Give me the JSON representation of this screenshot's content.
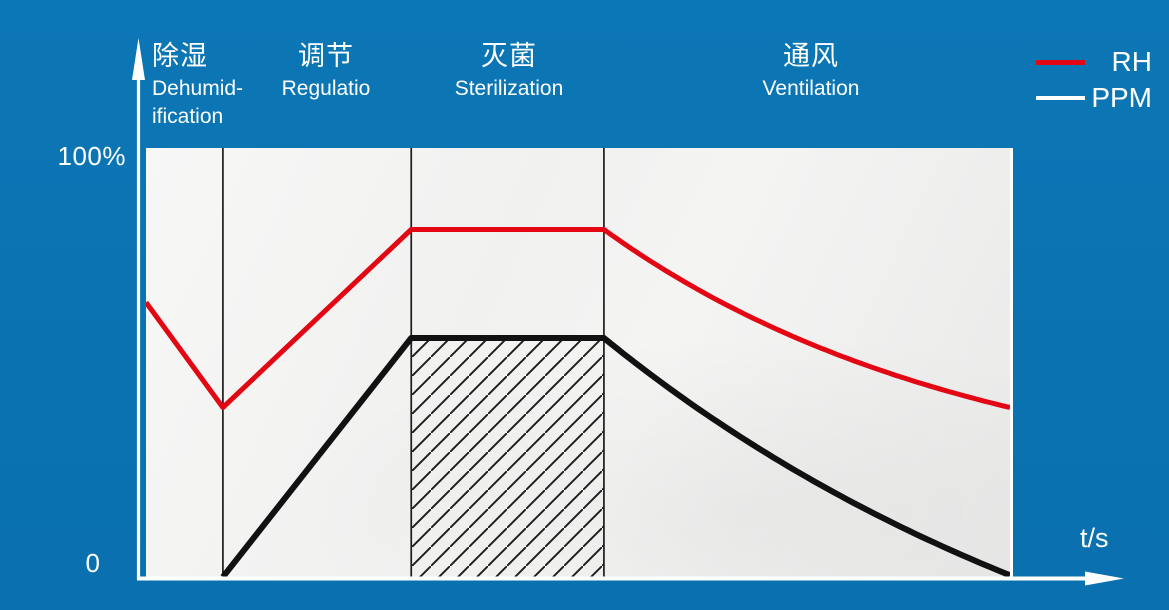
{
  "colors": {
    "background": "#0b73b2",
    "plot_background": "#f2f2f1",
    "rh_line": "#e30613",
    "ppm_line": "#111111",
    "axis": "#ffffff",
    "phase_divider": "#1c1c1c"
  },
  "axes": {
    "y_top_label": "100%",
    "y_bottom_label": "0",
    "x_label": "t/s"
  },
  "phases": [
    {
      "zh": "除湿",
      "en": "Dehumid-\nification"
    },
    {
      "zh": "调节",
      "en": "Regulatio"
    },
    {
      "zh": "灭菌",
      "en": "Sterilization"
    },
    {
      "zh": "通风",
      "en": "Ventilation"
    }
  ],
  "legend": {
    "items": [
      {
        "label": "RH",
        "color": "#e30613"
      },
      {
        "label": "PPM",
        "color": "#ffffff"
      }
    ]
  },
  "chart_data": {
    "type": "line",
    "title": "",
    "xlabel": "t/s",
    "ylabel": "%",
    "xlim": [
      0,
      100
    ],
    "ylim": [
      0,
      100
    ],
    "grid": false,
    "legend_position": "top-right",
    "phase_boundaries_t": [
      8.9,
      30.7,
      53.0
    ],
    "phase_ranges": [
      {
        "label_zh": "除湿",
        "label_en": "Dehumid-ification",
        "t_start": 0,
        "t_end": 8.9
      },
      {
        "label_zh": "调节",
        "label_en": "Regulatio",
        "t_start": 8.9,
        "t_end": 30.7
      },
      {
        "label_zh": "灭菌",
        "label_en": "Sterilization",
        "t_start": 30.7,
        "t_end": 53.0
      },
      {
        "label_zh": "通风",
        "label_en": "Ventilation",
        "t_start": 53.0,
        "t_end": 100
      }
    ],
    "series": [
      {
        "name": "RH",
        "color": "#e30613",
        "stroke_width": 5,
        "points": [
          {
            "t": 0,
            "v": 64
          },
          {
            "t": 8.9,
            "v": 39.5
          },
          {
            "t": 30.7,
            "v": 81
          },
          {
            "t": 53.0,
            "v": 81
          },
          {
            "t": 100,
            "v": 39.5
          }
        ],
        "segments": [
          "linear",
          "linear",
          "linear",
          "decay"
        ],
        "decay_k": 1.1
      },
      {
        "name": "PPM",
        "color": "#111111",
        "stroke_width": 6,
        "points": [
          {
            "t": 8.9,
            "v": 0
          },
          {
            "t": 30.7,
            "v": 55.7
          },
          {
            "t": 53.0,
            "v": 55.7
          },
          {
            "t": 100,
            "v": 0.4
          }
        ],
        "segments": [
          "linear",
          "linear",
          "decay"
        ],
        "decay_k": 0.7
      }
    ],
    "hatch_region": {
      "t_start": 30.7,
      "t_end": 53.0,
      "v_bottom": 0,
      "v_top": 55.7,
      "style": "diagonal-hatch"
    }
  }
}
